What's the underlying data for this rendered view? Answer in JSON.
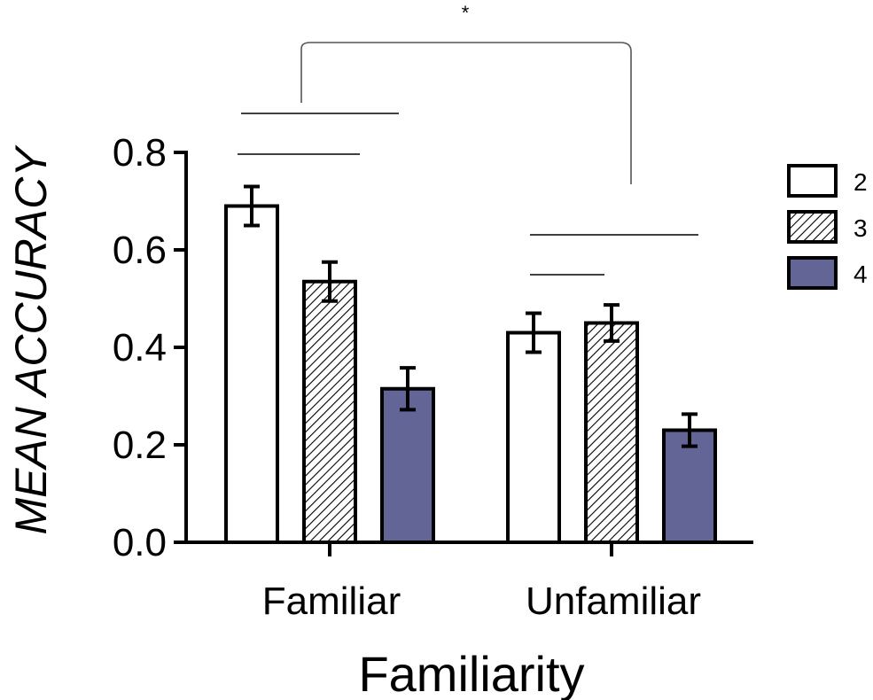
{
  "chart_data": {
    "type": "bar",
    "categories": [
      "Familiar",
      "Unfamiliar"
    ],
    "series": [
      {
        "name": "2",
        "values": [
          0.69,
          0.43
        ],
        "errors": [
          0.04,
          0.04
        ],
        "fill": "white"
      },
      {
        "name": "3",
        "values": [
          0.535,
          0.45
        ],
        "errors": [
          0.04,
          0.037
        ],
        "fill": "hatched"
      },
      {
        "name": "4",
        "values": [
          0.315,
          0.23
        ],
        "errors": [
          0.043,
          0.033
        ],
        "fill": "#636596"
      }
    ],
    "title": "",
    "xlabel": "Familiarity",
    "ylabel": "MEAN ACCURACY",
    "ylim": [
      0,
      0.8
    ],
    "yticks": [
      "0.0",
      "0.2",
      "0.4",
      "0.6",
      "0.8"
    ],
    "legend_position": "right",
    "significance": {
      "label": "*"
    },
    "colors": {
      "bar_series_4": "#636596",
      "axis": "#000000",
      "bar_outline": "#000000"
    }
  }
}
